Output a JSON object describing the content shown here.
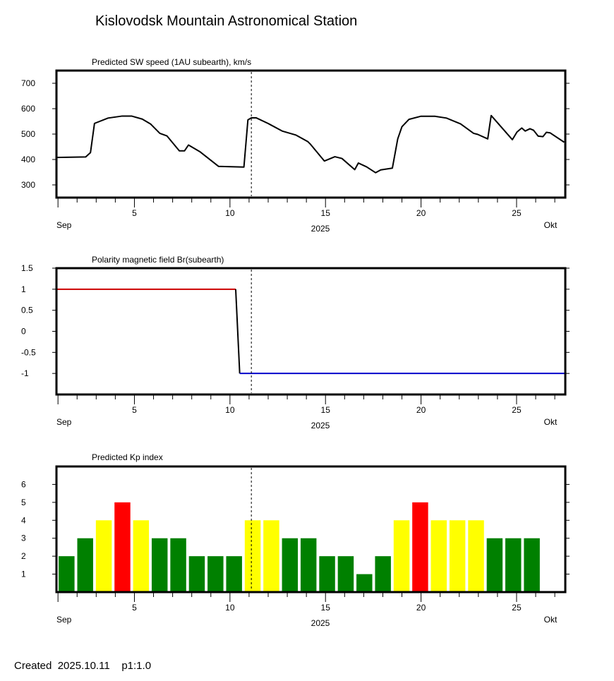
{
  "title": "Kislovodsk Mountain Astronomical Station",
  "footer": "Created  2025.10.11    p1:1.0",
  "colors": {
    "kp_green": "#008000",
    "kp_yellow": "#ffff00",
    "kp_red": "#ff0000",
    "positive": "#cc0000",
    "negative": "#0000cc"
  },
  "chart_data": [
    {
      "type": "line",
      "title": "Predicted SW speed (1AU subearth), km/s",
      "xlabel": "2025",
      "x_start_label": "Sep",
      "x_end_label": "Okt",
      "xlim": [
        0.92,
        27.55
      ],
      "ylim": [
        250,
        750
      ],
      "xticks": [
        5,
        10,
        15,
        20,
        25
      ],
      "xtick_labels": [
        "5",
        "10",
        "15",
        "20",
        "25"
      ],
      "yticks": [
        300,
        400,
        500,
        600,
        700
      ],
      "ytick_labels": [
        "300",
        "400",
        "500",
        "600",
        "700"
      ],
      "current_day": 11.12,
      "x": [
        0.92,
        2.45,
        2.7,
        2.91,
        3.62,
        4.36,
        4.85,
        5.41,
        5.84,
        6.33,
        6.7,
        7.35,
        7.62,
        7.83,
        8.42,
        9.4,
        10.73,
        10.94,
        11.12,
        11.37,
        11.99,
        12.73,
        13.46,
        14.08,
        14.2,
        14.94,
        15.49,
        15.86,
        16.53,
        16.72,
        17.15,
        17.62,
        17.89,
        18.5,
        18.78,
        19.0,
        19.37,
        19.98,
        20.72,
        21.33,
        22.07,
        22.75,
        22.96,
        23.49,
        23.67,
        24.78,
        25.02,
        25.27,
        25.45,
        25.7,
        25.89,
        26.13,
        26.38,
        26.56,
        26.75,
        27.49
      ],
      "y": [
        408,
        410,
        427,
        542,
        563,
        571,
        571,
        559,
        540,
        503,
        493,
        434,
        434,
        457,
        431,
        373,
        370,
        556,
        564,
        564,
        542,
        512,
        496,
        470,
        461,
        394,
        411,
        404,
        360,
        386,
        371,
        348,
        359,
        366,
        481,
        529,
        558,
        570,
        570,
        563,
        540,
        503,
        499,
        481,
        573,
        478,
        508,
        524,
        512,
        521,
        515,
        492,
        490,
        507,
        505,
        468
      ]
    },
    {
      "type": "line",
      "title": "Polarity magnetic field  Br(subearth)",
      "xlabel": "2025",
      "x_start_label": "Sep",
      "x_end_label": "Okt",
      "xlim": [
        0.92,
        27.55
      ],
      "ylim": [
        -1.5,
        1.5
      ],
      "xticks": [
        5,
        10,
        15,
        20,
        25
      ],
      "xtick_labels": [
        "5",
        "10",
        "15",
        "20",
        "25"
      ],
      "yticks": [
        1.5,
        1,
        0.5,
        0,
        -0.5,
        -1
      ],
      "ytick_labels": [
        "1.5",
        "1",
        "0.5",
        "0",
        "-0.5",
        "-1"
      ],
      "current_day": 11.12,
      "series": [
        {
          "name": "positive",
          "x": [
            0.92,
            10.3
          ],
          "y": [
            1,
            1
          ]
        },
        {
          "name": "transition",
          "x": [
            10.3,
            10.51
          ],
          "y": [
            1,
            -1
          ]
        },
        {
          "name": "negative",
          "x": [
            10.51,
            27.55
          ],
          "y": [
            -1,
            -1
          ]
        }
      ]
    },
    {
      "type": "bar",
      "title": "Predicted Kp index",
      "xlabel": "2025",
      "x_start_label": "Sep",
      "x_end_label": "Okt",
      "xlim": [
        0.92,
        27.55
      ],
      "ylim": [
        0,
        7
      ],
      "xticks": [
        5,
        10,
        15,
        20,
        25
      ],
      "xtick_labels": [
        "5",
        "10",
        "15",
        "20",
        "25"
      ],
      "yticks": [
        1,
        2,
        3,
        4,
        5,
        6
      ],
      "ytick_labels": [
        "1",
        "2",
        "3",
        "4",
        "5",
        "6"
      ],
      "current_day": 11.12,
      "bar_start_day": 1.45,
      "bar_step_days": 0.974,
      "bar_width_days": 0.83,
      "values": [
        2,
        3,
        4,
        5,
        4,
        3,
        3,
        2,
        2,
        2,
        4,
        4,
        3,
        3,
        2,
        2,
        1,
        2,
        4,
        5,
        4,
        4,
        4,
        3,
        3,
        3
      ]
    }
  ]
}
